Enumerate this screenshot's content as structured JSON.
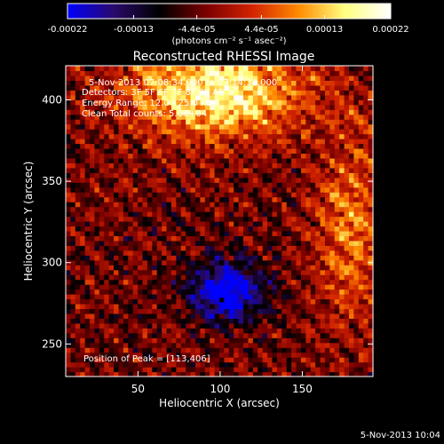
{
  "chart_data": {
    "type": "heatmap",
    "title": "Reconstructed RHESSI Image",
    "xlabel": "Heliocentric X (arcsec)",
    "ylabel": "Heliocentric Y (arcsec)",
    "xlim": [
      6,
      193
    ],
    "ylim": [
      230,
      421
    ],
    "x_ticks": [
      50,
      100,
      150
    ],
    "y_ticks": [
      250,
      300,
      350,
      400
    ],
    "colorbar": {
      "min": -0.00022,
      "max": 0.00022,
      "tick_values": [
        -0.00022,
        -0.00013,
        -4.4e-05,
        4.4e-05,
        0.00013,
        0.00022
      ],
      "tick_labels": [
        "-0.00022",
        "-0.00013",
        "-4.4e-05",
        "4.4e-05",
        "0.00013",
        "0.00022"
      ],
      "unit_label": "(photons cm⁻² s⁻¹ asec⁻²)",
      "colors": [
        "#0000ff",
        "#2a0a6c",
        "#000000",
        "#7a0000",
        "#d22300",
        "#ff8a00",
        "#ffff80",
        "#ffffff"
      ]
    },
    "annotations": [
      "5-Nov-2013 07:08:34.000 to 07:14:34.000",
      "Detectors: 3F 5F 6F 7F 8F 9F AF",
      "Energy Range: 12.0 - 25.0 keV",
      "Clean    Total counts: 5.6e+04",
      "Position of Peak = [113,406]"
    ],
    "peak": {
      "x": 113,
      "y": 406
    },
    "dark_marker": {
      "x": 101,
      "y": 277
    },
    "features": [
      {
        "kind": "bright-source",
        "x": 98,
        "y": 405,
        "level": 0.00022
      },
      {
        "kind": "bright-ridge-right",
        "x": 180,
        "y": 320,
        "level": 0.00013
      },
      {
        "kind": "blue-minimum",
        "x": 104,
        "y": 283,
        "level": -0.00022
      }
    ]
  },
  "footer": {
    "timestamp": "5-Nov-2013 10:04"
  }
}
